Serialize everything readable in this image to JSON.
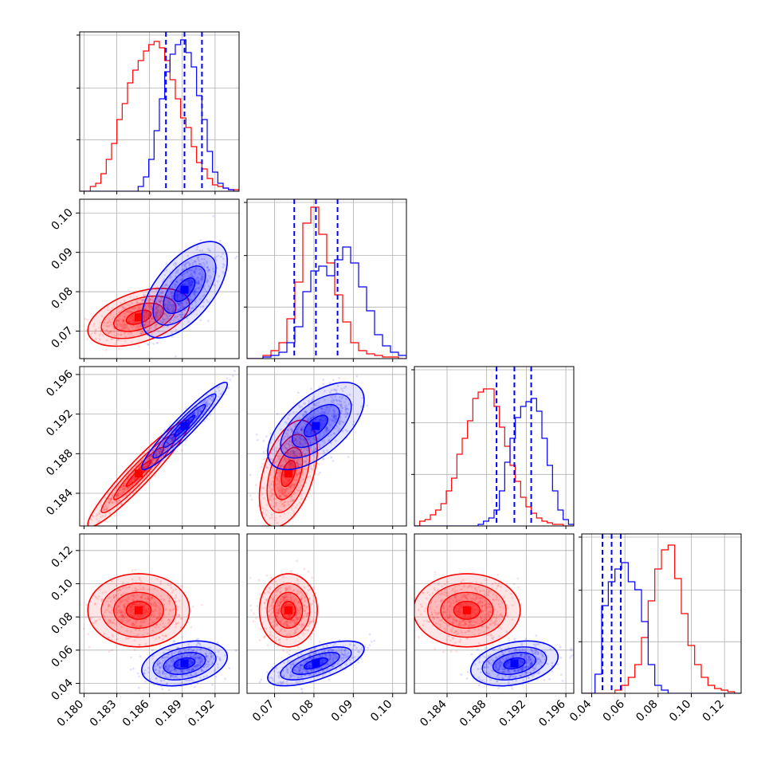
{
  "chart_data": {
    "type": "corner",
    "parameters": [
      "p0",
      "p1",
      "p2",
      "p3"
    ],
    "ranges": {
      "p0": [
        0.1796,
        0.1942
      ],
      "p1": [
        0.063,
        0.1035
      ],
      "p2": [
        0.1807,
        0.1968
      ],
      "p3": [
        0.034,
        0.13
      ]
    },
    "ticks": {
      "p0": [
        "0.180",
        "0.183",
        "0.186",
        "0.189",
        "0.192"
      ],
      "p1": [
        "0.07",
        "0.08",
        "0.09",
        "0.10"
      ],
      "p2": [
        "0.184",
        "0.188",
        "0.192",
        "0.196"
      ],
      "p3": [
        "0.04",
        "0.06",
        "0.08",
        "0.10",
        "0.12"
      ]
    },
    "grid": true,
    "series": [
      {
        "color": "#ff0000",
        "means": [
          0.185,
          0.0735,
          0.186,
          0.084
        ],
        "sigmas": [
          0.0019,
          0.003,
          0.0022,
          0.009
        ],
        "correlations": [
          [
            0,
            1,
            0.45
          ],
          [
            0,
            2,
            0.95
          ],
          [
            1,
            2,
            0.45
          ]
        ],
        "quantiles": null
      },
      {
        "color": "#0000ff",
        "means": [
          0.1892,
          0.0805,
          0.1908,
          0.052
        ],
        "sigmas": [
          0.0016,
          0.005,
          0.0018,
          0.0055
        ],
        "correlations": [
          [
            0,
            1,
            0.6
          ],
          [
            0,
            2,
            0.95
          ],
          [
            1,
            2,
            0.6
          ],
          [
            0,
            3,
            0.3
          ],
          [
            1,
            3,
            0.65
          ],
          [
            2,
            3,
            0.3
          ]
        ],
        "quantiles": [
          [
            0.1875,
            0.1892,
            0.1908
          ],
          [
            0.075,
            0.0805,
            0.086
          ],
          [
            0.189,
            0.1908,
            0.1925
          ],
          [
            0.0465,
            0.052,
            0.0575
          ]
        ]
      }
    ],
    "histograms": {
      "red": [
        [
          0.0,
          0.0,
          0.03,
          0.05,
          0.11,
          0.2,
          0.3,
          0.45,
          0.55,
          0.68,
          0.76,
          0.82,
          0.88,
          0.92,
          0.94,
          0.9,
          0.82,
          0.7,
          0.58,
          0.46,
          0.4,
          0.28,
          0.18,
          0.14,
          0.08,
          0.04,
          0.03,
          0.02,
          0.01,
          0.01
        ],
        [
          0.0,
          0.0,
          0.02,
          0.05,
          0.1,
          0.25,
          0.48,
          0.85,
          0.95,
          0.78,
          0.6,
          0.4,
          0.23,
          0.1,
          0.05,
          0.03,
          0.02,
          0.01,
          0.01,
          0.0
        ],
        [
          0.0,
          0.03,
          0.04,
          0.07,
          0.1,
          0.14,
          0.22,
          0.3,
          0.45,
          0.55,
          0.66,
          0.8,
          0.84,
          0.86,
          0.86,
          0.75,
          0.62,
          0.5,
          0.38,
          0.28,
          0.18,
          0.12,
          0.08,
          0.05,
          0.03,
          0.02,
          0.01,
          0.01,
          0.0,
          0.0
        ],
        [
          0.0,
          0.0,
          0.0,
          0.0,
          0.0,
          0.02,
          0.05,
          0.1,
          0.18,
          0.35,
          0.58,
          0.78,
          0.9,
          0.93,
          0.72,
          0.5,
          0.3,
          0.18,
          0.1,
          0.05,
          0.03,
          0.02,
          0.01,
          0.0
        ]
      ],
      "blue": [
        [
          0.0,
          0.0,
          0.0,
          0.0,
          0.0,
          0.0,
          0.0,
          0.0,
          0.0,
          0.0,
          0.0,
          0.03,
          0.09,
          0.2,
          0.38,
          0.58,
          0.75,
          0.86,
          0.92,
          0.95,
          0.87,
          0.78,
          0.6,
          0.45,
          0.25,
          0.12,
          0.05,
          0.02,
          0.01,
          0.0
        ],
        [
          0.0,
          0.0,
          0.01,
          0.02,
          0.04,
          0.1,
          0.2,
          0.42,
          0.55,
          0.58,
          0.52,
          0.62,
          0.7,
          0.6,
          0.45,
          0.3,
          0.15,
          0.08,
          0.04,
          0.02
        ],
        [
          0.0,
          0.0,
          0.0,
          0.0,
          0.0,
          0.0,
          0.0,
          0.0,
          0.0,
          0.0,
          0.0,
          0.0,
          0.01,
          0.03,
          0.05,
          0.1,
          0.22,
          0.4,
          0.55,
          0.68,
          0.75,
          0.78,
          0.8,
          0.72,
          0.55,
          0.38,
          0.22,
          0.1,
          0.04,
          0.01
        ],
        [
          0.0,
          0.0,
          0.12,
          0.55,
          0.7,
          0.78,
          0.82,
          0.7,
          0.65,
          0.45,
          0.18,
          0.05,
          0.02,
          0.0,
          0.0,
          0.0,
          0.0,
          0.0,
          0.0,
          0.0,
          0.0,
          0.0,
          0.0,
          0.0
        ]
      ]
    }
  }
}
